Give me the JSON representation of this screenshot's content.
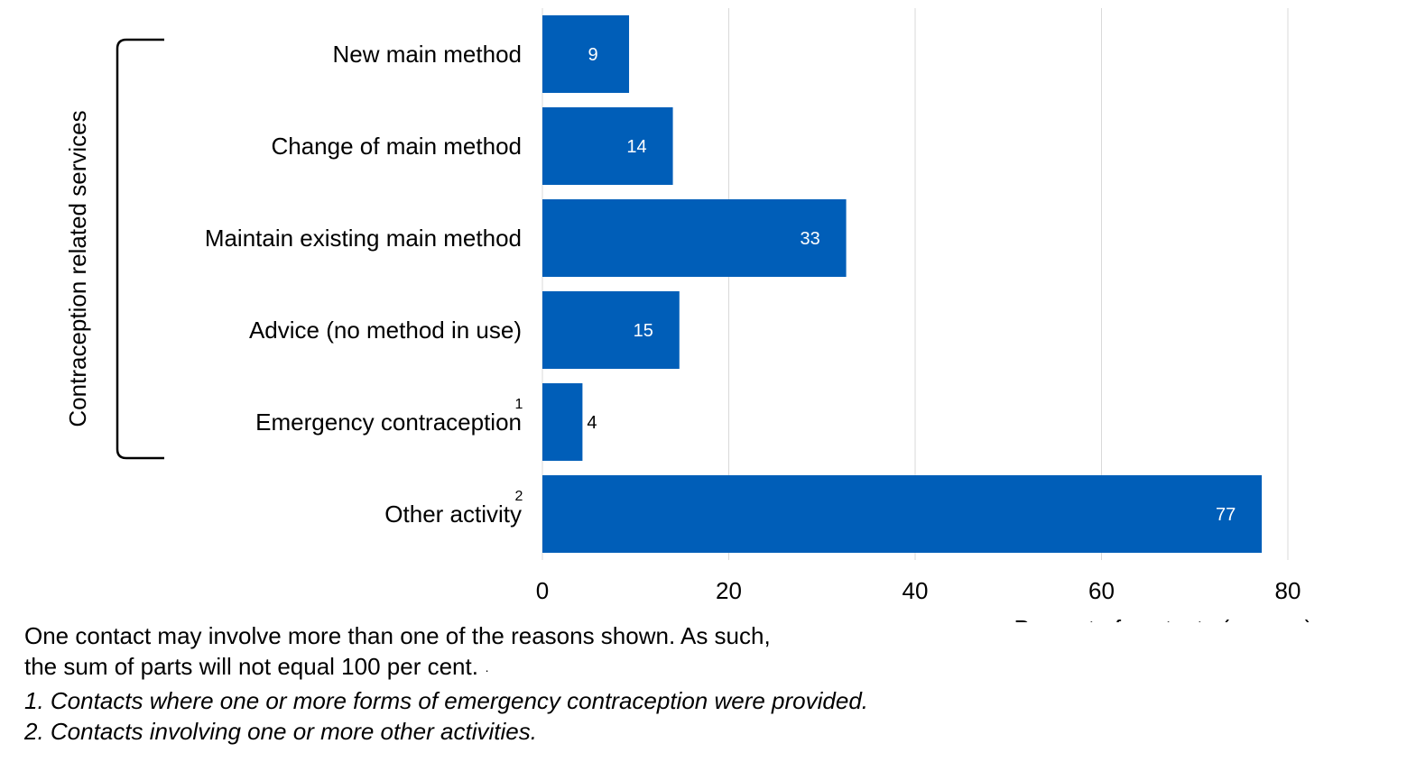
{
  "chart_data": {
    "type": "bar",
    "orientation": "horizontal",
    "categories": [
      {
        "label": "New main method",
        "superscript": ""
      },
      {
        "label": "Change of main method",
        "superscript": ""
      },
      {
        "label": "Maintain existing main method",
        "superscript": ""
      },
      {
        "label": "Advice (no method in use)",
        "superscript": ""
      },
      {
        "label": "Emergency contraception",
        "superscript": "1"
      },
      {
        "label": "Other activity",
        "superscript": "2"
      }
    ],
    "values": [
      9.3,
      14,
      32.6,
      14.7,
      4.3,
      77.2
    ],
    "data_labels": [
      "9",
      "14",
      "33",
      "15",
      "4",
      "77"
    ],
    "xlabel": "Percent of contacts (women)",
    "xlim": [
      0,
      80
    ],
    "xticks": [
      0,
      20,
      40,
      60,
      80
    ],
    "grid": "vertical",
    "bar_color": "#005EB8",
    "label_inside_color": "#FFFFFF",
    "label_outside_color": "#000000",
    "group_bracket": {
      "label": "Contraception related services",
      "covers": [
        "New main method",
        "Change of main method",
        "Maintain existing main method",
        "Advice (no method in use)",
        "Emergency contraception"
      ]
    }
  },
  "notes": {
    "line1": "One contact may involve more than one of the reasons shown. As such,",
    "line2": "the sum of parts will not equal 100 per cent.",
    "line2_mark": "·",
    "line3": "1. Contacts where one or more forms of emergency contraception were provided.",
    "line4": "2. Contacts involving one or more other activities."
  }
}
